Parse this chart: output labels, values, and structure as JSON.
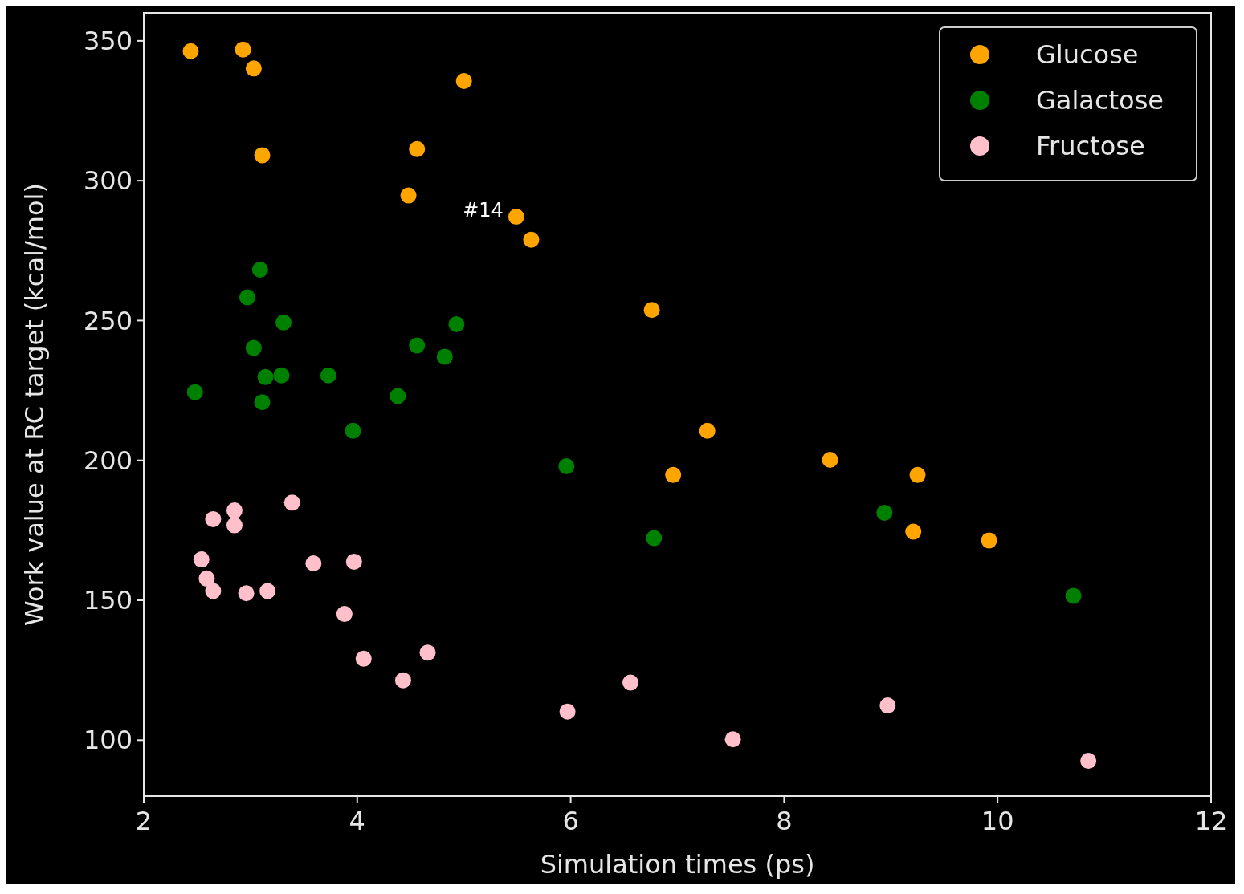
{
  "chart_data": {
    "type": "scatter",
    "xlabel": "Simulation times (ps)",
    "ylabel": "Work value at RC target (kcal/mol)",
    "xlim": [
      2,
      12
    ],
    "ylim": [
      80,
      360
    ],
    "xticks": [
      2,
      4,
      6,
      8,
      10,
      12
    ],
    "yticks": [
      100,
      150,
      200,
      250,
      300,
      350
    ],
    "grid": false,
    "legend": "top right",
    "marker": "circle",
    "annotations": [
      {
        "text": "#14",
        "x": 5.49,
        "y": 287.1
      }
    ],
    "series": [
      {
        "name": "Glucose",
        "color": "#ffa500",
        "x": [
          2.44,
          2.93,
          3.03,
          3.11,
          5.0,
          4.56,
          4.48,
          5.49,
          5.63,
          6.76,
          7.28,
          6.96,
          8.43,
          9.25,
          9.21,
          9.92
        ],
        "values": [
          346.3,
          346.9,
          340.1,
          309.1,
          335.6,
          311.3,
          294.7,
          287.1,
          278.9,
          253.8,
          210.6,
          194.8,
          200.2,
          194.8,
          174.5,
          171.4
        ]
      },
      {
        "name": "Galactose",
        "color": "#008000",
        "x": [
          3.09,
          2.97,
          3.31,
          3.03,
          3.14,
          3.29,
          3.11,
          2.48,
          3.73,
          3.96,
          4.38,
          4.56,
          4.82,
          4.93,
          5.96,
          6.78,
          8.94,
          10.71
        ],
        "values": [
          268.2,
          258.3,
          249.3,
          240.2,
          229.8,
          230.4,
          220.8,
          224.4,
          230.4,
          210.6,
          223.0,
          241.1,
          237.1,
          248.7,
          197.9,
          172.2,
          181.3,
          151.6
        ]
      },
      {
        "name": "Fructose",
        "color": "#ffc0cb",
        "x": [
          2.65,
          2.85,
          2.85,
          3.39,
          2.54,
          2.59,
          2.65,
          2.96,
          3.16,
          3.59,
          3.97,
          3.88,
          4.06,
          4.43,
          4.66,
          5.97,
          6.56,
          7.52,
          8.97,
          10.85
        ],
        "values": [
          179.0,
          182.1,
          176.8,
          184.9,
          164.6,
          157.8,
          153.3,
          152.5,
          153.3,
          163.2,
          163.8,
          145.1,
          129.1,
          121.4,
          131.3,
          110.2,
          120.6,
          100.3,
          112.4,
          92.6
        ]
      }
    ]
  }
}
